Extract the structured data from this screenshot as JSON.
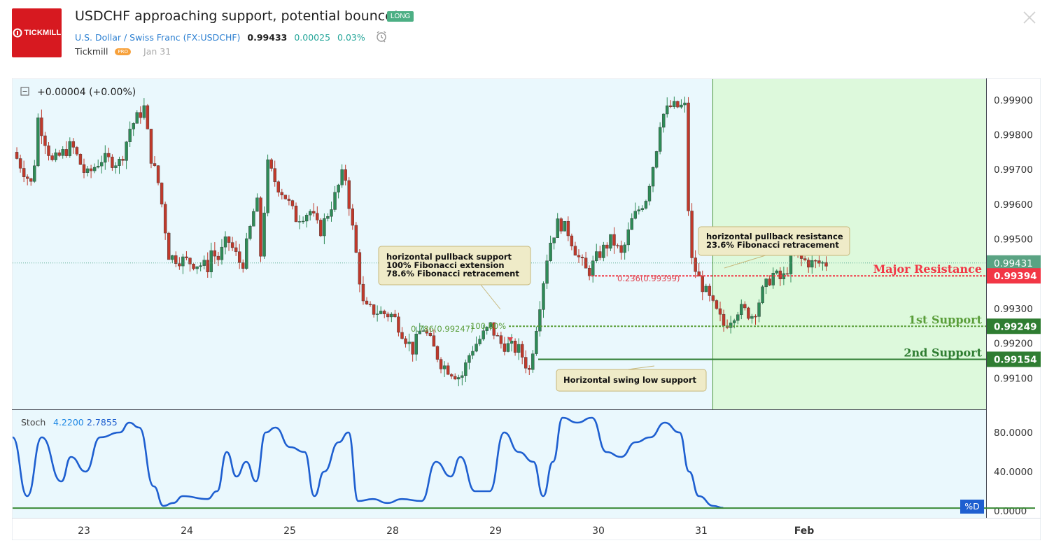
{
  "header": {
    "logo_text": "TICKMILL",
    "title": "USDCHF approaching support, potential bounce!",
    "badge": "LONG",
    "symbol_name": "U.S. Dollar / Swiss Franc",
    "symbol_ticker": "(FX:USDCHF)",
    "price": "0.99433",
    "change": "0.00025",
    "change_pct": "0.03%",
    "author": "Tickmill",
    "author_badge": "PRO",
    "date": "Jan 31"
  },
  "colors": {
    "up": "#2e8b57",
    "down": "#c0392b",
    "chart_bg": "#eaf8fd",
    "forecast_bg": "#ddf9dc",
    "resistance": "#f23645",
    "support_1": "#5a9e3a",
    "support_2": "#2f7d32",
    "stoch": "#1e5fd0",
    "d_line": "#3a8a36"
  },
  "chart_data": {
    "type": "candlestick",
    "legend": "+0.00004 (+0.00%)",
    "x_tick_labels": [
      "23",
      "24",
      "25",
      "28",
      "29",
      "30",
      "31",
      "Feb"
    ],
    "y_tick_labels": [
      "0.99900",
      "0.99800",
      "0.99700",
      "0.99600",
      "0.99500",
      "0.99300",
      "0.99200",
      "0.99100"
    ],
    "ylim": [
      0.9901,
      0.9996
    ],
    "price_path": [
      [
        0.0,
        0.9975
      ],
      [
        0.02,
        0.9965
      ],
      [
        0.025,
        0.9985
      ],
      [
        0.04,
        0.9972
      ],
      [
        0.06,
        0.9977
      ],
      [
        0.075,
        0.9968
      ],
      [
        0.09,
        0.9973
      ],
      [
        0.11,
        0.9972
      ],
      [
        0.12,
        0.9982
      ],
      [
        0.135,
        0.9988
      ],
      [
        0.14,
        0.9975
      ],
      [
        0.15,
        0.9965
      ],
      [
        0.16,
        0.9945
      ],
      [
        0.2,
        0.9942
      ],
      [
        0.2,
        0.9948
      ],
      [
        0.21,
        0.9944
      ],
      [
        0.22,
        0.995
      ],
      [
        0.235,
        0.9942
      ],
      [
        0.25,
        0.9962
      ],
      [
        0.255,
        0.9942
      ],
      [
        0.26,
        0.9972
      ],
      [
        0.27,
        0.9966
      ],
      [
        0.28,
        0.9962
      ],
      [
        0.29,
        0.9956
      ],
      [
        0.305,
        0.9958
      ],
      [
        0.315,
        0.9952
      ],
      [
        0.33,
        0.9962
      ],
      [
        0.34,
        0.997
      ],
      [
        0.35,
        0.995
      ],
      [
        0.36,
        0.993
      ],
      [
        0.39,
        0.9928
      ],
      [
        0.41,
        0.9918
      ],
      [
        0.42,
        0.9925
      ],
      [
        0.44,
        0.9914
      ],
      [
        0.46,
        0.991
      ],
      [
        0.47,
        0.9918
      ],
      [
        0.49,
        0.9925
      ],
      [
        0.5,
        0.992
      ],
      [
        0.52,
        0.9918
      ],
      [
        0.53,
        0.9912
      ],
      [
        0.54,
        0.993
      ],
      [
        0.55,
        0.9948
      ],
      [
        0.56,
        0.9955
      ],
      [
        0.57,
        0.9952
      ],
      [
        0.58,
        0.9945
      ],
      [
        0.59,
        0.994
      ],
      [
        0.6,
        0.9945
      ],
      [
        0.615,
        0.995
      ],
      [
        0.625,
        0.9945
      ],
      [
        0.635,
        0.9955
      ],
      [
        0.65,
        0.9962
      ],
      [
        0.66,
        0.9975
      ],
      [
        0.665,
        0.9985
      ],
      [
        0.675,
        0.9988
      ],
      [
        0.69,
        0.9988
      ],
      [
        0.695,
        0.9945
      ],
      [
        0.705,
        0.9938
      ],
      [
        0.72,
        0.993
      ],
      [
        0.73,
        0.9925
      ],
      [
        0.745,
        0.993
      ],
      [
        0.76,
        0.9928
      ],
      [
        0.77,
        0.9935
      ],
      [
        0.78,
        0.994
      ],
      [
        0.79,
        0.9938
      ],
      [
        0.8,
        0.9945
      ],
      [
        0.82,
        0.9943
      ],
      [
        0.835,
        0.9943
      ]
    ],
    "levels": [
      {
        "label": "Major Resistance",
        "value": 0.99394,
        "price_label": "0.99394"
      },
      {
        "label": "1st Support",
        "value": 0.99249,
        "price_label": "0.99249"
      },
      {
        "label": "2nd Support",
        "value": 0.99154,
        "price_label": "0.99154"
      }
    ],
    "current_price_label": "0.99431",
    "current_price": 0.99431,
    "fib_labels": [
      "0.236(0.99399)",
      "0.786(0.99247)",
      "100.00%"
    ],
    "annotations": [
      {
        "lines": [
          "horizontal pullback support",
          "100% Fibonacci extension",
          "78.6% Fibonacci retracement"
        ]
      },
      {
        "lines": [
          "horizontal pullback resistance",
          "23.6% Fibonacci retracement"
        ]
      },
      {
        "lines": [
          "Horizontal swing low support"
        ]
      }
    ],
    "forecast_start_x": 0.72,
    "indicator": {
      "name": "Stoch",
      "k": "4.2200",
      "d": "2.7855",
      "d_label": "%D",
      "y_tick_labels": [
        "80.0000",
        "40.0000",
        "0.0000"
      ],
      "ylim": [
        0,
        100
      ],
      "k_path": [
        [
          0.0,
          75
        ],
        [
          0.015,
          15
        ],
        [
          0.03,
          75
        ],
        [
          0.05,
          30
        ],
        [
          0.06,
          55
        ],
        [
          0.075,
          40
        ],
        [
          0.09,
          75
        ],
        [
          0.11,
          80
        ],
        [
          0.12,
          90
        ],
        [
          0.13,
          85
        ],
        [
          0.145,
          25
        ],
        [
          0.155,
          5
        ],
        [
          0.165,
          8
        ],
        [
          0.175,
          15
        ],
        [
          0.2,
          12
        ],
        [
          0.21,
          20
        ],
        [
          0.22,
          60
        ],
        [
          0.23,
          35
        ],
        [
          0.24,
          50
        ],
        [
          0.25,
          30
        ],
        [
          0.26,
          80
        ],
        [
          0.27,
          85
        ],
        [
          0.285,
          65
        ],
        [
          0.3,
          60
        ],
        [
          0.31,
          15
        ],
        [
          0.32,
          40
        ],
        [
          0.335,
          70
        ],
        [
          0.345,
          80
        ],
        [
          0.355,
          10
        ],
        [
          0.37,
          12
        ],
        [
          0.385,
          8
        ],
        [
          0.4,
          12
        ],
        [
          0.42,
          10
        ],
        [
          0.435,
          50
        ],
        [
          0.45,
          35
        ],
        [
          0.46,
          55
        ],
        [
          0.475,
          20
        ],
        [
          0.49,
          20
        ],
        [
          0.505,
          80
        ],
        [
          0.52,
          60
        ],
        [
          0.535,
          50
        ],
        [
          0.545,
          15
        ],
        [
          0.555,
          50
        ],
        [
          0.565,
          95
        ],
        [
          0.58,
          90
        ],
        [
          0.595,
          95
        ],
        [
          0.61,
          60
        ],
        [
          0.625,
          55
        ],
        [
          0.64,
          70
        ],
        [
          0.655,
          75
        ],
        [
          0.67,
          90
        ],
        [
          0.685,
          80
        ],
        [
          0.695,
          40
        ],
        [
          0.705,
          15
        ],
        [
          0.72,
          5
        ],
        [
          0.73,
          3
        ]
      ]
    }
  }
}
